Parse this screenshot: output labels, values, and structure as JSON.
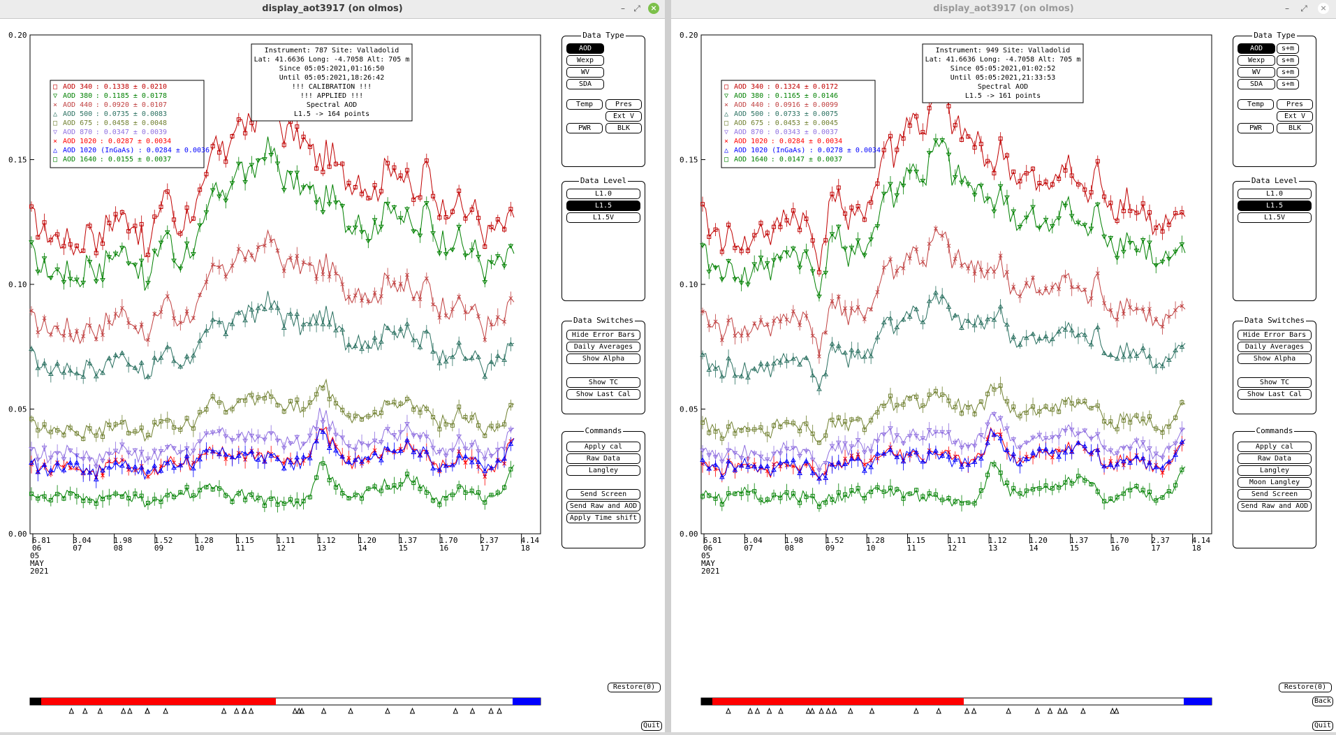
{
  "windows": [
    {
      "id": "left",
      "title": "display_aot3917 (on olmos)",
      "active": true,
      "info": [
        "Instrument: 787 Site: Valladolid",
        "Lat: 41.6636 Long: -4.7058 Alt: 705 m",
        "Since 05:05:2021,01:16:50",
        "Until 05:05:2021,18:26:42",
        "!!! CALIBRATION !!!",
        "!!!   APPLIED   !!!",
        "Spectral AOD",
        "L1.5 -> 164 points"
      ],
      "legend": [
        {
          "marker": "□",
          "label": "AOD 340",
          "value": ": 0.1338 ± 0.0210",
          "color": "#c00000"
        },
        {
          "marker": "▽",
          "label": "AOD 380",
          "value": ": 0.1185 ± 0.0178",
          "color": "#008000"
        },
        {
          "marker": "×",
          "label": "AOD 440",
          "value": ": 0.0920 ± 0.0107",
          "color": "#c04040"
        },
        {
          "marker": "△",
          "label": "AOD 500",
          "value": ": 0.0735 ± 0.0083",
          "color": "#2a7060"
        },
        {
          "marker": "□",
          "label": "AOD 675",
          "value": ": 0.0458 ± 0.0048",
          "color": "#708030"
        },
        {
          "marker": "▽",
          "label": "AOD 870",
          "value": ": 0.0347 ± 0.0039",
          "color": "#9070e0"
        },
        {
          "marker": "×",
          "label": "AOD 1020",
          "value": " : 0.0287 ± 0.0034",
          "color": "#ff0000"
        },
        {
          "marker": "△",
          "label": "AOD 1020 (InGaAs)",
          "value": " : 0.0284 ± 0.0036",
          "color": "#0000ff"
        },
        {
          "marker": "□",
          "label": "AOD 1640",
          "value": " : 0.0155 ± 0.0037",
          "color": "#008000"
        }
      ],
      "day_ticks": [
        {
          "top": "6.81",
          "bottom": "06"
        },
        {
          "top": "3.04",
          "bottom": "07"
        },
        {
          "top": "1.98",
          "bottom": "08"
        },
        {
          "top": "1.52",
          "bottom": "09"
        },
        {
          "top": "1.28",
          "bottom": "10"
        },
        {
          "top": "1.15",
          "bottom": "11"
        },
        {
          "top": "1.11",
          "bottom": "12"
        },
        {
          "top": "1.12",
          "bottom": "13"
        },
        {
          "top": "1.20",
          "bottom": "14"
        },
        {
          "top": "1.37",
          "bottom": "15"
        },
        {
          "top": "1.70",
          "bottom": "16"
        },
        {
          "top": "2.37",
          "bottom": "17"
        },
        {
          "top": "4.14",
          "bottom": "18"
        }
      ],
      "data_type": {
        "title": "Data Type",
        "items": [
          "AOD",
          "Wexp",
          "WV",
          "SDA"
        ],
        "selected": "AOD",
        "items2": [
          "Temp",
          "Pres",
          "Ext V",
          "PWR",
          "BLK"
        ]
      },
      "data_level": {
        "title": "Data Level",
        "items": [
          "L1.0",
          "L1.5",
          "L1.5V"
        ],
        "selected": "L1.5"
      },
      "data_switches": {
        "title": "Data Switches",
        "items": [
          "Hide Error Bars",
          "Daily Averages",
          "Show Alpha",
          "Show TC",
          "Show Last Cal"
        ]
      },
      "commands": {
        "title": "Commands",
        "items": [
          "Apply cal",
          "Raw Data",
          "Langley",
          "Send Screen",
          "Send Raw and AOD",
          "Apply Time shift"
        ]
      },
      "restore": "Restore(0)",
      "quit": "Quit",
      "series_offsets": [
        0.0,
        0.0
      ]
    },
    {
      "id": "right",
      "title": "display_aot3917 (on olmos)",
      "active": false,
      "info": [
        "Instrument: 949 Site: Valladolid",
        "Lat: 41.6636 Long: -4.7058 Alt: 705 m",
        "Since 05:05:2021,01:02:52",
        "Until 05:05:2021,21:33:53",
        "Spectral AOD",
        "L1.5 -> 161 points"
      ],
      "legend": [
        {
          "marker": "□",
          "label": "AOD 340",
          "value": ": 0.1324 ± 0.0172",
          "color": "#c00000"
        },
        {
          "marker": "▽",
          "label": "AOD 380",
          "value": ": 0.1165 ± 0.0146",
          "color": "#008000"
        },
        {
          "marker": "×",
          "label": "AOD 440",
          "value": ": 0.0916 ± 0.0099",
          "color": "#c04040"
        },
        {
          "marker": "△",
          "label": "AOD 500",
          "value": ": 0.0733 ± 0.0075",
          "color": "#2a7060"
        },
        {
          "marker": "□",
          "label": "AOD 675",
          "value": ": 0.0453 ± 0.0045",
          "color": "#708030"
        },
        {
          "marker": "▽",
          "label": "AOD 870",
          "value": ": 0.0343 ± 0.0037",
          "color": "#9070e0"
        },
        {
          "marker": "×",
          "label": "AOD 1020",
          "value": " : 0.0284 ± 0.0034",
          "color": "#ff0000"
        },
        {
          "marker": "△",
          "label": "AOD 1020 (InGaAs)",
          "value": " : 0.0278 ± 0.0034",
          "color": "#0000ff"
        },
        {
          "marker": "□",
          "label": "AOD 1640",
          "value": " : 0.0147 ± 0.0037",
          "color": "#008000"
        }
      ],
      "day_ticks": [
        {
          "top": "6.81",
          "bottom": "06"
        },
        {
          "top": "3.04",
          "bottom": "07"
        },
        {
          "top": "1.98",
          "bottom": "08"
        },
        {
          "top": "1.52",
          "bottom": "09"
        },
        {
          "top": "1.28",
          "bottom": "10"
        },
        {
          "top": "1.15",
          "bottom": "11"
        },
        {
          "top": "1.11",
          "bottom": "12"
        },
        {
          "top": "1.12",
          "bottom": "13"
        },
        {
          "top": "1.20",
          "bottom": "14"
        },
        {
          "top": "1.37",
          "bottom": "15"
        },
        {
          "top": "1.70",
          "bottom": "16"
        },
        {
          "top": "2.37",
          "bottom": "17"
        },
        {
          "top": "4.14",
          "bottom": "18"
        }
      ],
      "data_type": {
        "title": "Data Type",
        "items": [
          "AOD",
          "Wexp",
          "WV",
          "SDA"
        ],
        "selected": "AOD",
        "sm": "s+m",
        "items2": [
          "Temp",
          "Pres",
          "Ext V",
          "PWR",
          "BLK"
        ]
      },
      "data_level": {
        "title": "Data Level",
        "items": [
          "L1.0",
          "L1.5",
          "L1.5V"
        ],
        "selected": "L1.5"
      },
      "data_switches": {
        "title": "Data Switches",
        "items": [
          "Hide Error Bars",
          "Daily Averages",
          "Show Alpha",
          "Show TC",
          "Show Last Cal"
        ]
      },
      "commands": {
        "title": "Commands",
        "items": [
          "Apply cal",
          "Raw Data",
          "Langley",
          "Moon Langley",
          "Send Screen",
          "Send Raw and AOD"
        ]
      },
      "restore": "Restore(0)",
      "back": "Back",
      "quit": "Quit"
    }
  ],
  "date_label": [
    "05",
    "MAY",
    "2021"
  ],
  "chart_data": [
    {
      "type": "line",
      "title": "",
      "xlabel": "",
      "ylabel": "",
      "ylim": [
        0,
        0.2
      ],
      "yticks": [
        "0.00",
        "0.05",
        "0.10",
        "0.15",
        "0.20"
      ],
      "series": [
        {
          "name": "AOD 340",
          "color": "#c00000",
          "mean": 0.1338
        },
        {
          "name": "AOD 380",
          "color": "#008000",
          "mean": 0.1185
        },
        {
          "name": "AOD 440",
          "color": "#c04040",
          "mean": 0.092
        },
        {
          "name": "AOD 500",
          "color": "#2a7060",
          "mean": 0.0735
        },
        {
          "name": "AOD 675",
          "color": "#708030",
          "mean": 0.0458
        },
        {
          "name": "AOD 870",
          "color": "#9070e0",
          "mean": 0.0347
        },
        {
          "name": "AOD 1020",
          "color": "#ff0000",
          "mean": 0.0287
        },
        {
          "name": "AOD 1020 (InGaAs)",
          "color": "#0000ff",
          "mean": 0.0284
        },
        {
          "name": "AOD 1640",
          "color": "#008000",
          "mean": 0.0155
        }
      ],
      "profile_x_fraction": [
        0.0,
        0.02,
        0.04,
        0.06,
        0.08,
        0.1,
        0.12,
        0.14,
        0.16,
        0.18,
        0.2,
        0.22,
        0.24,
        0.26,
        0.28,
        0.3,
        0.32,
        0.34,
        0.36,
        0.38,
        0.4,
        0.42,
        0.44,
        0.46,
        0.48,
        0.5,
        0.52,
        0.54,
        0.56,
        0.58,
        0.6,
        0.62,
        0.64,
        0.66,
        0.68,
        0.7,
        0.72,
        0.74,
        0.76,
        0.78,
        0.8,
        0.82,
        0.84,
        0.86,
        0.88,
        0.9,
        0.92,
        0.94,
        0.96,
        0.98,
        1.0
      ],
      "profile_340": [
        0.127,
        0.121,
        0.119,
        0.119,
        0.117,
        0.114,
        0.125,
        0.117,
        0.125,
        0.128,
        0.127,
        0.122,
        0.11,
        0.128,
        0.14,
        0.122,
        0.127,
        0.132,
        0.138,
        0.158,
        0.15,
        0.165,
        0.165,
        0.16,
        0.176,
        0.175,
        0.162,
        0.16,
        0.157,
        0.155,
        0.148,
        0.154,
        0.145,
        0.14,
        0.145,
        0.136,
        0.139,
        0.15,
        0.146,
        0.14,
        0.134,
        0.148,
        0.133,
        0.131,
        0.136,
        0.128,
        0.13,
        0.12,
        0.123,
        0.123,
        0.128
      ],
      "profile_1640": [
        0.015,
        0.015,
        0.014,
        0.016,
        0.017,
        0.016,
        0.014,
        0.013,
        0.016,
        0.016,
        0.015,
        0.015,
        0.012,
        0.013,
        0.015,
        0.016,
        0.017,
        0.015,
        0.018,
        0.018,
        0.017,
        0.015,
        0.016,
        0.014,
        0.014,
        0.013,
        0.013,
        0.012,
        0.013,
        0.016,
        0.03,
        0.022,
        0.017,
        0.015,
        0.016,
        0.019,
        0.018,
        0.02,
        0.02,
        0.022,
        0.021,
        0.017,
        0.014,
        0.016,
        0.017,
        0.018,
        0.016,
        0.014,
        0.014,
        0.018,
        0.028
      ]
    }
  ]
}
